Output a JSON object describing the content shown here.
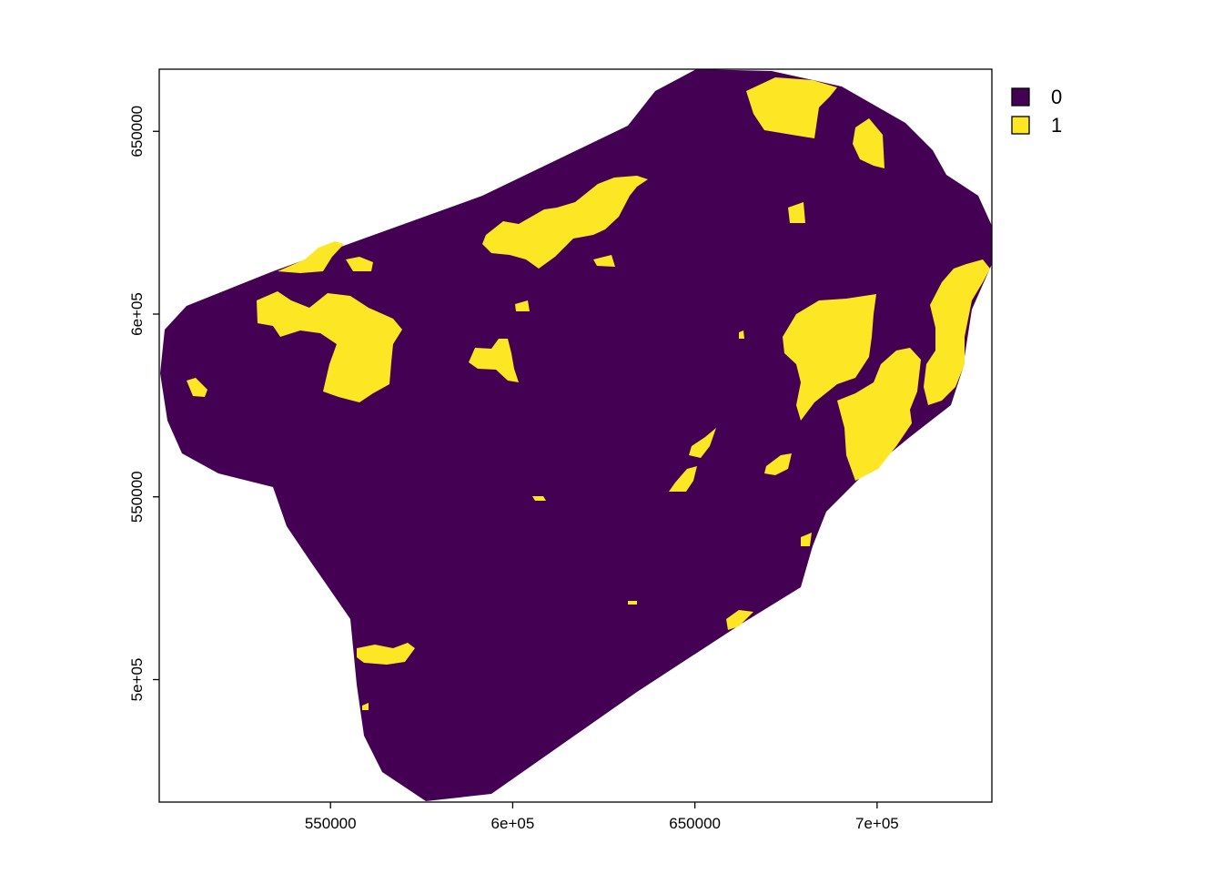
{
  "chart_data": {
    "type": "raster",
    "title": "",
    "xlabel": "",
    "ylabel": "",
    "x_ticks": [
      550000,
      600000,
      650000,
      700000
    ],
    "x_tick_labels": [
      "550000",
      "6e+05",
      "650000",
      "7e+05"
    ],
    "y_ticks": [
      500000,
      550000,
      600000,
      650000
    ],
    "y_tick_labels": [
      "5e+05",
      "550000",
      "6e+05",
      "650000"
    ],
    "xlim": [
      503000,
      731500
    ],
    "ylim": [
      466500,
      667000
    ],
    "legend": {
      "position": "top-right",
      "items": [
        {
          "label": "0",
          "color": "#440154"
        },
        {
          "label": "1",
          "color": "#FDE725"
        }
      ]
    }
  }
}
